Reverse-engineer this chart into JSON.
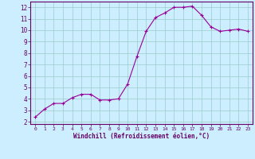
{
  "x": [
    0,
    1,
    2,
    3,
    4,
    5,
    6,
    7,
    8,
    9,
    10,
    11,
    12,
    13,
    14,
    15,
    16,
    17,
    18,
    19,
    20,
    21,
    22,
    23
  ],
  "y": [
    2.4,
    3.1,
    3.6,
    3.6,
    4.1,
    4.4,
    4.4,
    3.9,
    3.9,
    4.0,
    5.3,
    7.7,
    9.9,
    11.1,
    11.5,
    12.0,
    12.0,
    12.1,
    11.3,
    10.3,
    9.9,
    10.0,
    10.1,
    9.9
  ],
  "line_color": "#990099",
  "marker": "+",
  "bg_color": "#cceeff",
  "grid_color": "#99cccc",
  "xlabel": "Windchill (Refroidissement éolien,°C)",
  "xlabel_color": "#660066",
  "tick_color": "#660066",
  "spine_color": "#660066",
  "ylim_min": 1.8,
  "ylim_max": 12.5,
  "xlim_min": -0.5,
  "xlim_max": 23.5,
  "yticks": [
    2,
    3,
    4,
    5,
    6,
    7,
    8,
    9,
    10,
    11,
    12
  ],
  "xticks": [
    0,
    1,
    2,
    3,
    4,
    5,
    6,
    7,
    8,
    9,
    10,
    11,
    12,
    13,
    14,
    15,
    16,
    17,
    18,
    19,
    20,
    21,
    22,
    23
  ]
}
